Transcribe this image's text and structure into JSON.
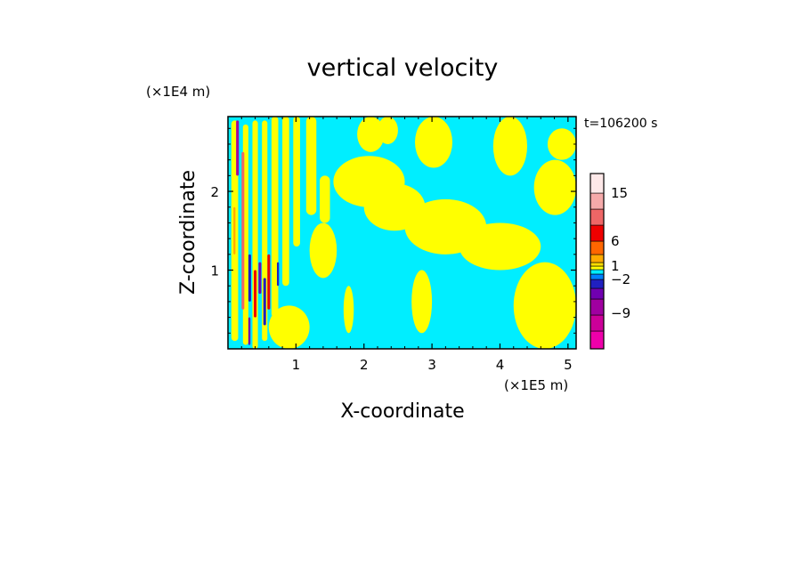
{
  "chart_data": {
    "type": "heatmap",
    "title": "vertical velocity",
    "xlabel": "X-coordinate",
    "ylabel": "Z-coordinate",
    "x_unit_label": "(×1E5 m)",
    "y_unit_label": "(×1E4 m)",
    "time_label": "t=106200 s",
    "xlim": [
      0,
      5.12
    ],
    "ylim": [
      0,
      2.95
    ],
    "x_ticks": [
      {
        "value": 1,
        "label": "1"
      },
      {
        "value": 2,
        "label": "2"
      },
      {
        "value": 3,
        "label": "3"
      },
      {
        "value": 4,
        "label": "4"
      },
      {
        "value": 5,
        "label": "5"
      }
    ],
    "y_ticks": [
      {
        "value": 1,
        "label": "1"
      },
      {
        "value": 2,
        "label": "2"
      }
    ],
    "colors": {
      "background_negative": "#00eeff",
      "positive_weak": "#ffff00",
      "frame": "#000000"
    },
    "colorbar": {
      "levels": [
        {
          "color": "#ee00aa"
        },
        {
          "color": "#cc0099"
        },
        {
          "color": "#a000a0"
        },
        {
          "color": "#7000b0"
        },
        {
          "color": "#2020c0"
        },
        {
          "color": "#0080ff"
        },
        {
          "color": "#00eeff"
        },
        {
          "color": "#ffff00"
        },
        {
          "color": "#ffdd00"
        },
        {
          "color": "#ffaa00"
        },
        {
          "color": "#ff6600"
        },
        {
          "color": "#ee0000"
        },
        {
          "color": "#ee6666"
        },
        {
          "color": "#f5aaaa"
        },
        {
          "color": "#fde8e8"
        }
      ],
      "labels": [
        {
          "value": -9,
          "label": "−9"
        },
        {
          "value": -2,
          "label": "−2"
        },
        {
          "value": 1,
          "label": "1"
        },
        {
          "value": 6,
          "label": "6"
        },
        {
          "value": 15,
          "label": "15"
        }
      ]
    },
    "regions": [
      {
        "kind": "band",
        "x0": 0.05,
        "x1": 0.15,
        "z0": 0.1,
        "z1": 2.9,
        "color": "#ffff00"
      },
      {
        "kind": "band",
        "x0": 0.22,
        "x1": 0.3,
        "z0": 0.05,
        "z1": 2.85,
        "color": "#ffff00"
      },
      {
        "kind": "band",
        "x0": 0.36,
        "x1": 0.44,
        "z0": 0.0,
        "z1": 2.9,
        "color": "#ffff00"
      },
      {
        "kind": "band",
        "x0": 0.5,
        "x1": 0.58,
        "z0": 0.1,
        "z1": 2.9,
        "color": "#ffff00"
      },
      {
        "kind": "band",
        "x0": 0.64,
        "x1": 0.74,
        "z0": 0.4,
        "z1": 2.95,
        "color": "#ffff00"
      },
      {
        "kind": "band",
        "x0": 0.8,
        "x1": 0.9,
        "z0": 0.8,
        "z1": 2.95,
        "color": "#ffff00"
      },
      {
        "kind": "band",
        "x0": 0.96,
        "x1": 1.06,
        "z0": 1.3,
        "z1": 2.95,
        "color": "#ffff00"
      },
      {
        "kind": "band",
        "x0": 1.15,
        "x1": 1.3,
        "z0": 1.7,
        "z1": 2.95,
        "color": "#ffff00"
      },
      {
        "kind": "band",
        "x0": 1.35,
        "x1": 1.5,
        "z0": 1.6,
        "z1": 2.2,
        "color": "#ffff00"
      },
      {
        "kind": "blob",
        "x0": 0.6,
        "x1": 1.2,
        "z0": 0.0,
        "z1": 0.55,
        "color": "#ffff00"
      },
      {
        "kind": "blob",
        "x0": 1.2,
        "x1": 1.6,
        "z0": 0.9,
        "z1": 1.6,
        "color": "#ffff00"
      },
      {
        "kind": "blob",
        "x0": 1.55,
        "x1": 2.6,
        "z0": 1.8,
        "z1": 2.45,
        "color": "#ffff00"
      },
      {
        "kind": "blob",
        "x0": 2.0,
        "x1": 2.9,
        "z0": 1.5,
        "z1": 2.1,
        "color": "#ffff00"
      },
      {
        "kind": "blob",
        "x0": 2.6,
        "x1": 3.8,
        "z0": 1.2,
        "z1": 1.9,
        "color": "#ffff00"
      },
      {
        "kind": "blob",
        "x0": 3.4,
        "x1": 4.6,
        "z0": 1.0,
        "z1": 1.6,
        "color": "#ffff00"
      },
      {
        "kind": "blob",
        "x0": 4.2,
        "x1": 5.12,
        "z0": 0.0,
        "z1": 1.1,
        "color": "#ffff00"
      },
      {
        "kind": "blob",
        "x0": 1.9,
        "x1": 2.3,
        "z0": 2.5,
        "z1": 2.95,
        "color": "#ffff00"
      },
      {
        "kind": "blob",
        "x0": 2.2,
        "x1": 2.5,
        "z0": 2.6,
        "z1": 2.95,
        "color": "#ffff00"
      },
      {
        "kind": "blob",
        "x0": 3.9,
        "x1": 4.4,
        "z0": 2.2,
        "z1": 2.95,
        "color": "#ffff00"
      },
      {
        "kind": "blob",
        "x0": 4.7,
        "x1": 5.12,
        "z0": 2.4,
        "z1": 2.8,
        "color": "#ffff00"
      },
      {
        "kind": "blob",
        "x0": 2.7,
        "x1": 3.0,
        "z0": 0.2,
        "z1": 1.0,
        "color": "#ffff00"
      },
      {
        "kind": "blob",
        "x0": 1.7,
        "x1": 1.85,
        "z0": 0.2,
        "z1": 0.8,
        "color": "#ffff00"
      },
      {
        "kind": "blob",
        "x0": 2.75,
        "x1": 3.3,
        "z0": 2.3,
        "z1": 2.95,
        "color": "#ffff00"
      },
      {
        "kind": "blob",
        "x0": 4.5,
        "x1": 5.12,
        "z0": 1.7,
        "z1": 2.4,
        "color": "#ffff00"
      },
      {
        "kind": "streak",
        "x0": 0.12,
        "x1": 0.16,
        "z0": 2.2,
        "z1": 2.9,
        "color": "#a000a0"
      },
      {
        "kind": "streak",
        "x0": 0.2,
        "x1": 0.24,
        "z0": 0.5,
        "z1": 2.5,
        "color": "#ee6666"
      },
      {
        "kind": "streak",
        "x0": 0.3,
        "x1": 0.34,
        "z0": 0.6,
        "z1": 1.2,
        "color": "#2020c0"
      },
      {
        "kind": "streak",
        "x0": 0.38,
        "x1": 0.42,
        "z0": 0.4,
        "z1": 1.0,
        "color": "#ee0000"
      },
      {
        "kind": "streak",
        "x0": 0.45,
        "x1": 0.49,
        "z0": 0.7,
        "z1": 1.1,
        "color": "#7000b0"
      },
      {
        "kind": "streak",
        "x0": 0.52,
        "x1": 0.56,
        "z0": 0.3,
        "z1": 0.9,
        "color": "#2020c0"
      },
      {
        "kind": "streak",
        "x0": 0.58,
        "x1": 0.62,
        "z0": 0.5,
        "z1": 1.2,
        "color": "#ee0000"
      },
      {
        "kind": "streak",
        "x0": 0.3,
        "x1": 0.33,
        "z0": 0.05,
        "z1": 0.4,
        "color": "#7000b0"
      },
      {
        "kind": "streak",
        "x0": 0.08,
        "x1": 0.11,
        "z0": 1.2,
        "z1": 1.8,
        "color": "#ffaa00"
      },
      {
        "kind": "streak",
        "x0": 0.72,
        "x1": 0.75,
        "z0": 0.8,
        "z1": 1.1,
        "color": "#2020c0"
      }
    ]
  }
}
